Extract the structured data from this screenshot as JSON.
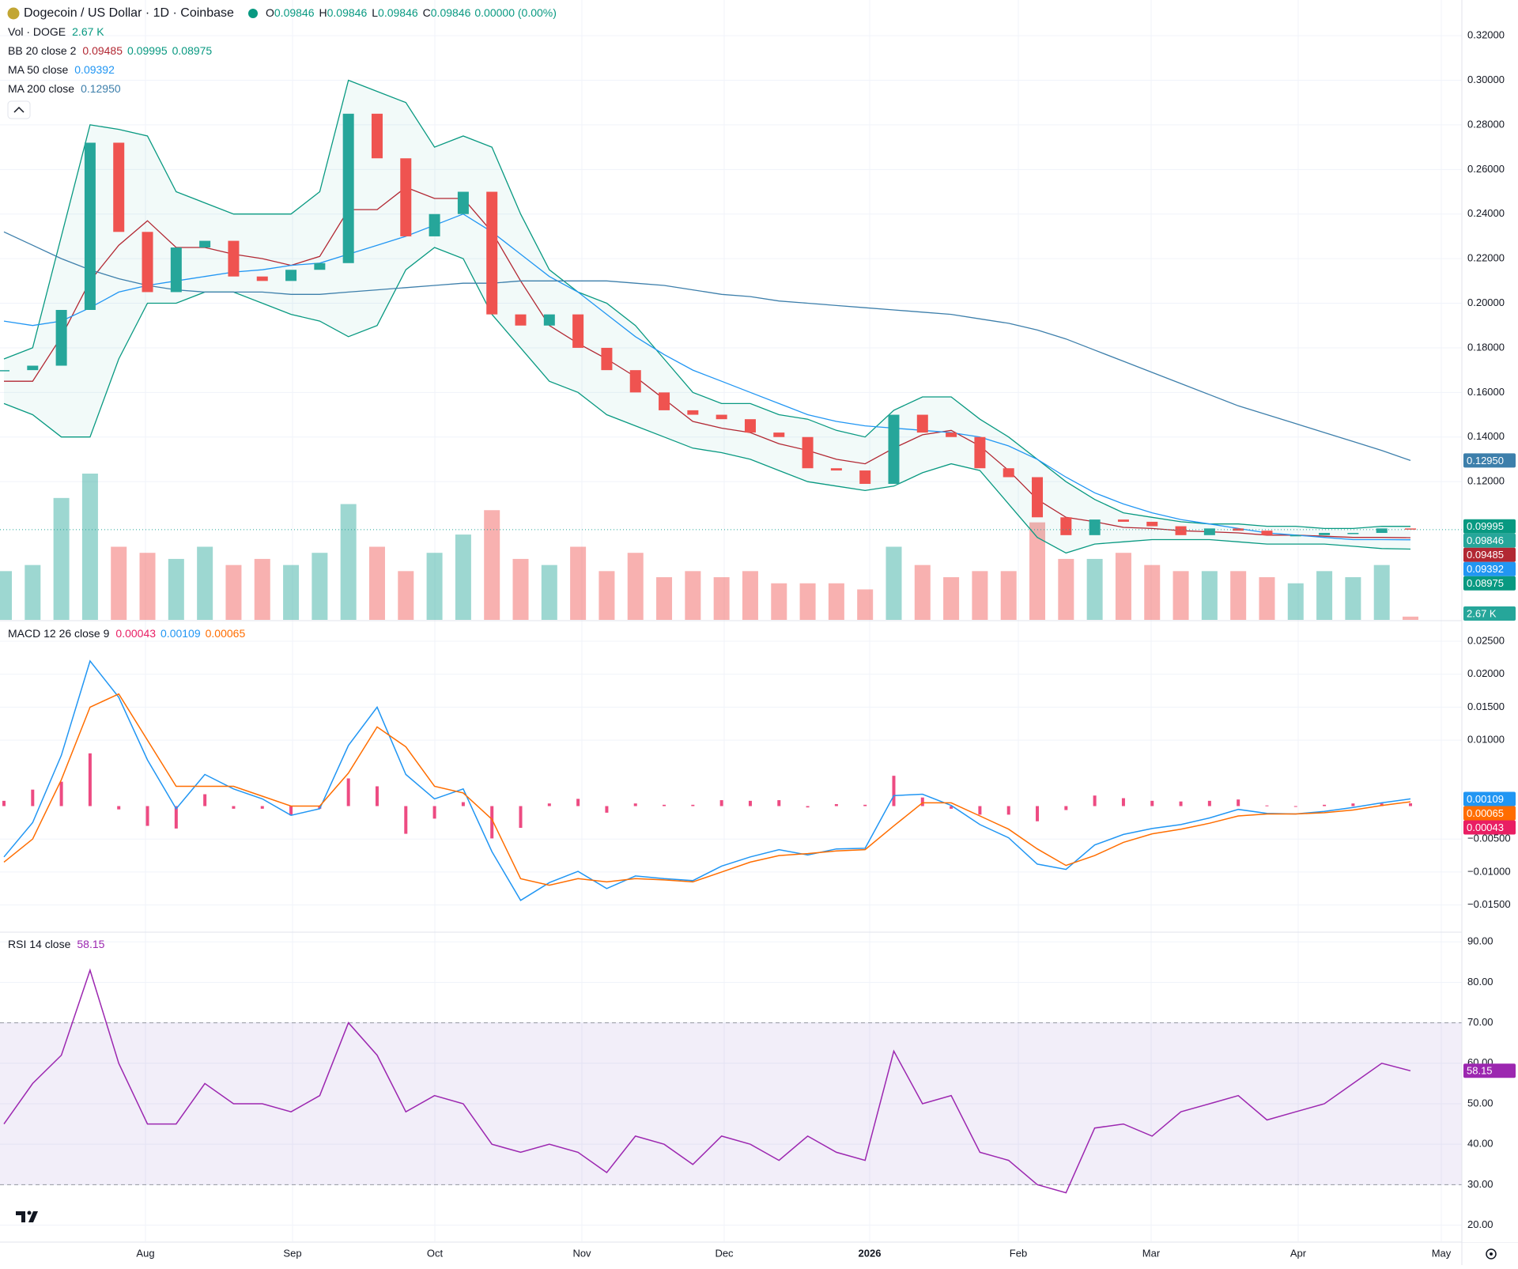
{
  "legend": {
    "symbol": "Dogecoin / US Dollar · 1D · Coinbase",
    "ohlc": [
      {
        "key": "O",
        "value": "0.09846"
      },
      {
        "key": "H",
        "value": "0.09846"
      },
      {
        "key": "L",
        "value": "0.09846"
      },
      {
        "key": "C",
        "value": "0.09846"
      }
    ],
    "change": "0.00000 (0.00%)",
    "vol": {
      "name": "Vol · DOGE",
      "value": "2.67 K"
    },
    "bb": {
      "name": "BB 20 close 2",
      "values": [
        "0.09485",
        "0.09995",
        "0.08975"
      ]
    },
    "ma50": {
      "name": "MA 50 close",
      "value": "0.09392"
    },
    "ma200": {
      "name": "MA 200 close",
      "value": "0.12950"
    },
    "macd": {
      "name": "MACD 12 26 close 9",
      "values": [
        "0.00043",
        "0.00109",
        "0.00065"
      ]
    },
    "rsi": {
      "name": "RSI 14 close",
      "value": "58.15"
    }
  },
  "chart_data": {
    "type": "candlestick",
    "time_labels": [
      "Aug",
      "Sep",
      "Oct",
      "Nov",
      "Dec",
      "2026",
      "Feb",
      "Mar",
      "Apr",
      "May"
    ],
    "up_color": "#26a69a",
    "down_color": "#ef5350",
    "ylim": [
      0.058,
      0.336
    ],
    "yticks": [
      {
        "value": 0.12,
        "label": "0.12000"
      },
      {
        "value": 0.14,
        "label": "0.14000"
      },
      {
        "value": 0.16,
        "label": "0.16000"
      },
      {
        "value": 0.18,
        "label": "0.18000"
      },
      {
        "value": 0.2,
        "label": "0.20000"
      },
      {
        "value": 0.22,
        "label": "0.22000"
      },
      {
        "value": 0.24,
        "label": "0.24000"
      },
      {
        "value": 0.26,
        "label": "0.26000"
      },
      {
        "value": 0.28,
        "label": "0.28000"
      },
      {
        "value": 0.3,
        "label": "0.30000"
      },
      {
        "value": 0.32,
        "label": "0.32000"
      }
    ],
    "close": [
      0.17,
      0.172,
      0.197,
      0.272,
      0.232,
      0.205,
      0.225,
      0.228,
      0.212,
      0.21,
      0.215,
      0.218,
      0.285,
      0.265,
      0.23,
      0.24,
      0.25,
      0.195,
      0.19,
      0.195,
      0.18,
      0.17,
      0.16,
      0.152,
      0.15,
      0.148,
      0.142,
      0.14,
      0.126,
      0.125,
      0.119,
      0.15,
      0.142,
      0.14,
      0.126,
      0.122,
      0.104,
      0.096,
      0.103,
      0.102,
      0.1,
      0.096,
      0.099,
      0.098,
      0.096,
      0.096,
      0.097,
      0.097,
      0.099,
      0.09846
    ],
    "volume": [
      40,
      45,
      100,
      120,
      60,
      55,
      50,
      60,
      45,
      50,
      45,
      55,
      95,
      60,
      40,
      55,
      70,
      90,
      50,
      45,
      60,
      40,
      55,
      35,
      40,
      35,
      40,
      30,
      30,
      30,
      25,
      60,
      45,
      35,
      40,
      40,
      80,
      50,
      50,
      55,
      45,
      40,
      40,
      40,
      35,
      30,
      40,
      35,
      45,
      2.67
    ],
    "bb_basis": {
      "color": "#b22833",
      "values": [
        0.165,
        0.165,
        0.185,
        0.21,
        0.226,
        0.237,
        0.225,
        0.225,
        0.222,
        0.22,
        0.217,
        0.221,
        0.242,
        0.242,
        0.252,
        0.247,
        0.247,
        0.232,
        0.21,
        0.19,
        0.182,
        0.175,
        0.167,
        0.157,
        0.147,
        0.144,
        0.142,
        0.137,
        0.134,
        0.13,
        0.128,
        0.135,
        0.141,
        0.143,
        0.136,
        0.125,
        0.112,
        0.104,
        0.102,
        0.0995,
        0.099,
        0.098,
        0.0975,
        0.097,
        0.096,
        0.096,
        0.0955,
        0.095,
        0.095,
        0.09485
      ]
    },
    "bb_upper": {
      "color": "#089981",
      "values": [
        0.175,
        0.18,
        0.23,
        0.28,
        0.278,
        0.275,
        0.25,
        0.245,
        0.24,
        0.24,
        0.24,
        0.25,
        0.3,
        0.295,
        0.29,
        0.27,
        0.275,
        0.27,
        0.24,
        0.215,
        0.205,
        0.2,
        0.19,
        0.175,
        0.16,
        0.155,
        0.155,
        0.15,
        0.148,
        0.143,
        0.14,
        0.152,
        0.158,
        0.158,
        0.148,
        0.14,
        0.13,
        0.12,
        0.112,
        0.106,
        0.104,
        0.102,
        0.101,
        0.101,
        0.1,
        0.1,
        0.099,
        0.099,
        0.1,
        0.09995
      ]
    },
    "bb_lower": {
      "color": "#089981",
      "values": [
        0.155,
        0.15,
        0.14,
        0.14,
        0.175,
        0.2,
        0.2,
        0.205,
        0.205,
        0.2,
        0.195,
        0.192,
        0.185,
        0.19,
        0.215,
        0.225,
        0.22,
        0.195,
        0.18,
        0.165,
        0.16,
        0.15,
        0.145,
        0.14,
        0.135,
        0.133,
        0.13,
        0.125,
        0.12,
        0.118,
        0.116,
        0.118,
        0.124,
        0.128,
        0.125,
        0.11,
        0.095,
        0.088,
        0.092,
        0.093,
        0.094,
        0.094,
        0.094,
        0.093,
        0.092,
        0.092,
        0.092,
        0.091,
        0.09,
        0.08975
      ]
    },
    "ma50": {
      "color": "#2196f3",
      "values": [
        0.192,
        0.19,
        0.192,
        0.198,
        0.205,
        0.208,
        0.21,
        0.212,
        0.214,
        0.215,
        0.217,
        0.218,
        0.222,
        0.226,
        0.23,
        0.235,
        0.24,
        0.232,
        0.222,
        0.212,
        0.205,
        0.195,
        0.185,
        0.177,
        0.17,
        0.165,
        0.16,
        0.155,
        0.15,
        0.147,
        0.145,
        0.144,
        0.143,
        0.142,
        0.14,
        0.136,
        0.13,
        0.122,
        0.115,
        0.11,
        0.106,
        0.103,
        0.101,
        0.099,
        0.097,
        0.096,
        0.095,
        0.094,
        0.094,
        0.09392
      ]
    },
    "ma200": {
      "color": "#3d7fab",
      "values": [
        0.232,
        0.226,
        0.22,
        0.215,
        0.211,
        0.208,
        0.206,
        0.205,
        0.205,
        0.205,
        0.204,
        0.204,
        0.205,
        0.206,
        0.207,
        0.208,
        0.209,
        0.209,
        0.21,
        0.21,
        0.21,
        0.21,
        0.209,
        0.208,
        0.206,
        0.204,
        0.203,
        0.201,
        0.2,
        0.199,
        0.198,
        0.197,
        0.196,
        0.195,
        0.193,
        0.191,
        0.188,
        0.184,
        0.179,
        0.174,
        0.169,
        0.164,
        0.159,
        0.154,
        0.15,
        0.146,
        0.142,
        0.138,
        0.134,
        0.1295
      ]
    },
    "macd": {
      "ylim": [
        -0.019,
        0.028
      ],
      "yticks": [
        {
          "value": 0.025,
          "label": "0.02500"
        },
        {
          "value": 0.02,
          "label": "0.02000"
        },
        {
          "value": 0.015,
          "label": "0.01500"
        },
        {
          "value": 0.01,
          "label": "0.01000"
        },
        {
          "value": -0.005,
          "label": "−0.00500"
        },
        {
          "value": -0.01,
          "label": "−0.01000"
        },
        {
          "value": -0.015,
          "label": "−0.01500"
        }
      ],
      "histogram": {
        "color": "#e91e63",
        "values": [
          0.0008,
          0.0025,
          0.0037,
          0.008,
          -0.0005,
          -0.003,
          -0.0034,
          0.0018,
          -0.0004,
          -0.0004,
          -0.0014,
          -0.0004,
          0.0042,
          0.003,
          -0.0042,
          -0.0019,
          0.0006,
          -0.0049,
          -0.0033,
          0.0004,
          0.0011,
          -0.001,
          0.0004,
          0.0002,
          0.0002,
          0.0009,
          0.0008,
          0.0009,
          -0.0002,
          0.0003,
          0.0002,
          0.0046,
          0.0013,
          -0.0004,
          -0.0013,
          -0.0013,
          -0.0023,
          -0.0006,
          0.0016,
          0.0012,
          0.0008,
          0.0007,
          0.0008,
          0.001,
          0.0001,
          0.0,
          0.0002,
          0.0004,
          0.0004,
          0.00043
        ]
      },
      "line": {
        "color": "#2196f3",
        "values": [
          -0.0077,
          -0.0025,
          0.0077,
          0.022,
          0.0165,
          0.007,
          -0.0004,
          0.0048,
          0.0026,
          0.0011,
          -0.0014,
          -0.0004,
          0.0092,
          0.015,
          0.0048,
          0.0011,
          0.0026,
          -0.0069,
          -0.0143,
          -0.0116,
          -0.0099,
          -0.0125,
          -0.0106,
          -0.011,
          -0.0113,
          -0.0091,
          -0.0077,
          -0.0066,
          -0.0074,
          -0.0065,
          -0.0064,
          0.0016,
          0.0018,
          0.0001,
          -0.0028,
          -0.0048,
          -0.0088,
          -0.0096,
          -0.0059,
          -0.0043,
          -0.0034,
          -0.0028,
          -0.0018,
          -0.0005,
          -0.0011,
          -0.0012,
          -0.0008,
          -0.0002,
          0.0005,
          0.00109
        ]
      },
      "signal": {
        "color": "#ff6d00",
        "values": [
          -0.0085,
          -0.005,
          0.004,
          0.015,
          0.017,
          0.01,
          0.003,
          0.003,
          0.003,
          0.0015,
          0.0,
          0.0,
          0.005,
          0.012,
          0.009,
          0.003,
          0.002,
          -0.002,
          -0.011,
          -0.012,
          -0.011,
          -0.0115,
          -0.011,
          -0.0112,
          -0.0115,
          -0.01,
          -0.0085,
          -0.0075,
          -0.0072,
          -0.0068,
          -0.0066,
          -0.003,
          0.0005,
          0.0005,
          -0.0015,
          -0.0035,
          -0.0065,
          -0.009,
          -0.0075,
          -0.0055,
          -0.0042,
          -0.0035,
          -0.0026,
          -0.0015,
          -0.0012,
          -0.0012,
          -0.001,
          -0.0006,
          0.0001,
          0.00065
        ]
      }
    },
    "rsi": {
      "ylim": [
        16,
        92.2
      ],
      "yticks": [
        {
          "value": 20,
          "label": "20.00"
        },
        {
          "value": 30,
          "label": "30.00"
        },
        {
          "value": 40,
          "label": "40.00"
        },
        {
          "value": 50,
          "label": "50.00"
        },
        {
          "value": 60,
          "label": "60.00"
        },
        {
          "value": 70,
          "label": "70.00"
        },
        {
          "value": 80,
          "label": "80.00"
        },
        {
          "value": 90,
          "label": "90.00"
        }
      ],
      "bands": [
        30,
        70
      ],
      "color": "#9c27b0",
      "values": [
        45,
        55,
        62,
        83,
        60,
        45,
        45,
        55,
        50,
        50,
        48,
        52,
        70,
        62,
        48,
        52,
        50,
        40,
        38,
        40,
        38,
        33,
        42,
        40,
        35,
        42,
        40,
        36,
        42,
        38,
        36,
        63,
        50,
        52,
        38,
        36,
        30,
        28,
        44,
        45,
        42,
        48,
        50,
        52,
        46,
        48,
        50,
        55,
        60,
        58.15
      ]
    }
  }
}
